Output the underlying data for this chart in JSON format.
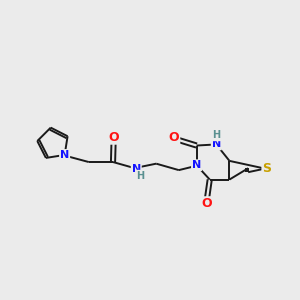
{
  "background_color": "#ebebeb",
  "bond_color": "#1a1a1a",
  "atom_colors": {
    "N": "#1414ff",
    "O": "#ff1414",
    "S": "#c8a000",
    "H": "#5a9090",
    "C": "#1a1a1a"
  },
  "figsize": [
    3.0,
    3.0
  ],
  "dpi": 100
}
